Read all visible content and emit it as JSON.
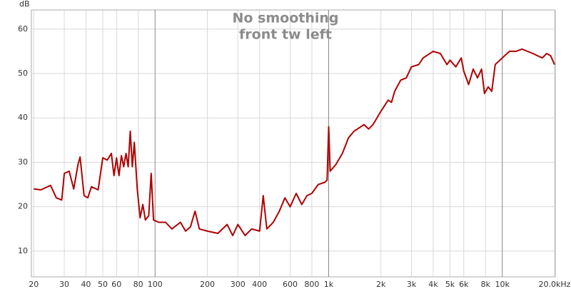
{
  "chart_data": {
    "type": "line",
    "title": "No smoothing",
    "subtitle": "front tw left",
    "ylabel": "dB",
    "xscale": "log",
    "grid": true,
    "color": "#b00000",
    "xlim": [
      19.4,
      20200
    ],
    "ylim": [
      4.2,
      64.3
    ],
    "yticks": [
      10,
      20,
      30,
      40,
      50,
      60
    ],
    "xticks": [
      20,
      30,
      40,
      50,
      60,
      80,
      100,
      200,
      300,
      400,
      600,
      800,
      {
        "value": 1000,
        "label": "1k"
      },
      {
        "value": 2000,
        "label": "2k"
      },
      {
        "value": 3000,
        "label": "3k"
      },
      {
        "value": 4000,
        "label": "4k"
      },
      {
        "value": 5000,
        "label": "5k"
      },
      {
        "value": 6000,
        "label": "6k"
      },
      {
        "value": 8000,
        "label": "8k"
      },
      {
        "value": 10000,
        "label": "10k"
      },
      {
        "value": 20000,
        "label": "20.0kHz"
      }
    ],
    "x": [
      20,
      22,
      25,
      27,
      29,
      30,
      32,
      34,
      36,
      37,
      39,
      41,
      43,
      47,
      50,
      53,
      56,
      58,
      60,
      62,
      64,
      66,
      68,
      70,
      72,
      74,
      76,
      79,
      82,
      85,
      88,
      92,
      95,
      98,
      105,
      115,
      125,
      140,
      150,
      160,
      170,
      180,
      200,
      230,
      260,
      280,
      300,
      330,
      360,
      400,
      420,
      440,
      480,
      520,
      560,
      600,
      650,
      700,
      750,
      800,
      870,
      950,
      980,
      1000,
      1020,
      1100,
      1200,
      1300,
      1400,
      1600,
      1700,
      1800,
      2000,
      2200,
      2300,
      2400,
      2600,
      2800,
      3000,
      3300,
      3500,
      4000,
      4400,
      4800,
      5000,
      5400,
      5800,
      6000,
      6400,
      6800,
      7200,
      7600,
      7900,
      8300,
      8700,
      9100,
      10000,
      11000,
      12000,
      13000,
      15000,
      17000,
      18000,
      19000,
      20000
    ],
    "values": [
      24,
      23.8,
      24.8,
      22,
      21.5,
      27.5,
      28,
      24,
      29.5,
      31.2,
      22.5,
      22,
      24.5,
      23.8,
      31,
      30.5,
      32,
      27,
      31,
      27,
      31.5,
      29,
      32,
      29,
      37,
      29,
      34.5,
      24,
      17.5,
      20.5,
      17,
      18,
      27.5,
      17,
      16.5,
      16.5,
      15,
      16.5,
      14.5,
      15.5,
      19,
      15,
      14.5,
      14,
      16,
      13.5,
      16,
      13.5,
      15,
      14.5,
      22.5,
      15,
      16.5,
      19,
      22,
      20,
      23,
      20.5,
      22.5,
      23,
      25,
      25.5,
      26,
      38,
      28,
      29.5,
      32,
      35.5,
      37,
      38.5,
      37.5,
      38.5,
      41.5,
      44,
      43.5,
      46,
      48.5,
      49,
      51.5,
      52,
      53.5,
      55,
      54.5,
      52,
      53,
      51.5,
      53.5,
      50.5,
      47.5,
      51,
      49,
      51,
      45.5,
      47,
      46,
      52,
      53.5,
      55,
      55,
      55.5,
      54.5,
      53.5,
      54.5,
      54,
      52
    ]
  }
}
